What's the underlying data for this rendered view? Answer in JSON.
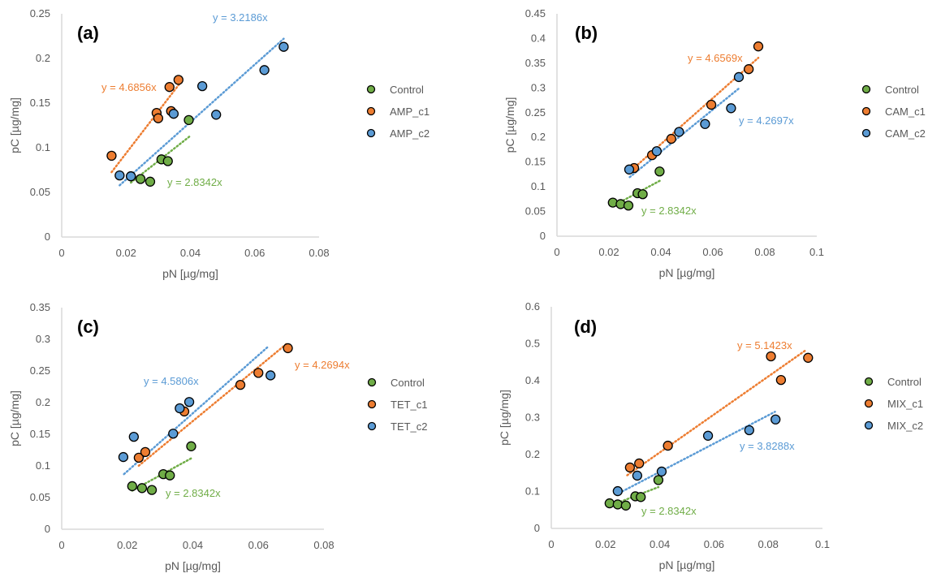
{
  "chart_data": [
    {
      "type": "scatter",
      "panel": "(a)",
      "xlabel": "pN [µg/mg]",
      "ylabel": "pC [µg/mg]",
      "xlim": [
        0,
        0.08
      ],
      "ylim": [
        0,
        0.25
      ],
      "xticks": [
        "0",
        "0.02",
        "0.04",
        "0.06",
        "0.08"
      ],
      "yticks": [
        "0",
        "0.05",
        "0.1",
        "0.15",
        "0.2",
        "0.25"
      ],
      "grid": false,
      "legend_position": "right",
      "series": [
        {
          "name": "Control",
          "color": "#70ad47",
          "trend_slope": 2.8342,
          "trend_label": "y = 2.8342x",
          "points": [
            [
              0.0215,
              0.068
            ],
            [
              0.0245,
              0.065
            ],
            [
              0.0275,
              0.062
            ],
            [
              0.031,
              0.087
            ],
            [
              0.033,
              0.085
            ],
            [
              0.0395,
              0.131
            ]
          ]
        },
        {
          "name": "AMP_c1",
          "color": "#ed7d31",
          "trend_slope": 4.6856,
          "trend_label": "y = 4.6856x",
          "points": [
            [
              0.0155,
              0.091
            ],
            [
              0.0295,
              0.139
            ],
            [
              0.03,
              0.133
            ],
            [
              0.034,
              0.141
            ],
            [
              0.0335,
              0.168
            ],
            [
              0.0363,
              0.176
            ]
          ]
        },
        {
          "name": "AMP_c2",
          "color": "#5b9bd5",
          "trend_slope": 3.2186,
          "trend_label": "y = 3.2186x",
          "points": [
            [
              0.018,
              0.069
            ],
            [
              0.0215,
              0.068
            ],
            [
              0.0348,
              0.138
            ],
            [
              0.0437,
              0.169
            ],
            [
              0.048,
              0.137
            ],
            [
              0.063,
              0.187
            ],
            [
              0.069,
              0.213
            ]
          ]
        }
      ]
    },
    {
      "type": "scatter",
      "panel": "(b)",
      "xlabel": "pN [µg/mg]",
      "ylabel": "pC [µg/mg]",
      "xlim": [
        0,
        0.1
      ],
      "ylim": [
        0,
        0.45
      ],
      "xticks": [
        "0",
        "0.02",
        "0.04",
        "0.06",
        "0.08",
        "0.1"
      ],
      "yticks": [
        "0",
        "0.05",
        "0.1",
        "0.15",
        "0.2",
        "0.25",
        "0.3",
        "0.35",
        "0.4",
        "0.45"
      ],
      "grid": false,
      "legend_position": "right",
      "series": [
        {
          "name": "Control",
          "color": "#70ad47",
          "trend_slope": 2.8342,
          "trend_label": "y = 2.8342x",
          "points": [
            [
              0.0215,
              0.068
            ],
            [
              0.0245,
              0.065
            ],
            [
              0.0275,
              0.062
            ],
            [
              0.031,
              0.087
            ],
            [
              0.033,
              0.085
            ],
            [
              0.0395,
              0.131
            ]
          ]
        },
        {
          "name": "CAM_c1",
          "color": "#ed7d31",
          "trend_slope": 4.6569,
          "trend_label": "y = 4.6569x",
          "points": [
            [
              0.0297,
              0.138
            ],
            [
              0.0366,
              0.164
            ],
            [
              0.044,
              0.197
            ],
            [
              0.0594,
              0.266
            ],
            [
              0.0738,
              0.338
            ],
            [
              0.0775,
              0.384
            ]
          ]
        },
        {
          "name": "CAM_c2",
          "color": "#5b9bd5",
          "trend_slope": 4.2697,
          "trend_label": "y = 4.2697x",
          "points": [
            [
              0.0278,
              0.135
            ],
            [
              0.0384,
              0.172
            ],
            [
              0.047,
              0.211
            ],
            [
              0.057,
              0.227
            ],
            [
              0.067,
              0.259
            ],
            [
              0.07,
              0.322
            ]
          ]
        }
      ]
    },
    {
      "type": "scatter",
      "panel": "(c)",
      "xlabel": "pN [µg/mg]",
      "ylabel": "pC [µg/mg]",
      "xlim": [
        0,
        0.08
      ],
      "ylim": [
        0,
        0.35
      ],
      "xticks": [
        "0",
        "0.02",
        "0.04",
        "0.06",
        "0.08"
      ],
      "yticks": [
        "0",
        "0.05",
        "0.1",
        "0.15",
        "0.2",
        "0.25",
        "0.3",
        "0.35"
      ],
      "grid": false,
      "legend_position": "right",
      "series": [
        {
          "name": "Control",
          "color": "#70ad47",
          "trend_slope": 2.8342,
          "trend_label": "y = 2.8342x",
          "points": [
            [
              0.0215,
              0.068
            ],
            [
              0.0245,
              0.065
            ],
            [
              0.0275,
              0.062
            ],
            [
              0.031,
              0.087
            ],
            [
              0.033,
              0.085
            ],
            [
              0.0395,
              0.131
            ]
          ]
        },
        {
          "name": "TET_c1",
          "color": "#ed7d31",
          "trend_slope": 4.2694,
          "trend_label": "y = 4.2694x",
          "points": [
            [
              0.0235,
              0.113
            ],
            [
              0.0255,
              0.122
            ],
            [
              0.0374,
              0.186
            ],
            [
              0.0545,
              0.228
            ],
            [
              0.06,
              0.247
            ],
            [
              0.069,
              0.286
            ]
          ]
        },
        {
          "name": "TET_c2",
          "color": "#5b9bd5",
          "trend_slope": 4.5806,
          "trend_label": "y = 4.5806x",
          "points": [
            [
              0.0188,
              0.114
            ],
            [
              0.022,
              0.146
            ],
            [
              0.034,
              0.151
            ],
            [
              0.036,
              0.191
            ],
            [
              0.0389,
              0.201
            ],
            [
              0.0637,
              0.243
            ]
          ]
        }
      ]
    },
    {
      "type": "scatter",
      "panel": "(d)",
      "xlabel": "pN [µg/mg]",
      "ylabel": "pC [µg/mg]",
      "xlim": [
        0,
        0.1
      ],
      "ylim": [
        0,
        0.6
      ],
      "xticks": [
        "0",
        "0.02",
        "0.04",
        "0.06",
        "0.08",
        "0.1"
      ],
      "yticks": [
        "0",
        "0.1",
        "0.2",
        "0.3",
        "0.4",
        "0.5",
        "0.6"
      ],
      "grid": false,
      "legend_position": "right",
      "series": [
        {
          "name": "Control",
          "color": "#70ad47",
          "trend_slope": 2.8342,
          "trend_label": "y = 2.8342x",
          "points": [
            [
              0.0215,
              0.068
            ],
            [
              0.0245,
              0.065
            ],
            [
              0.0275,
              0.062
            ],
            [
              0.031,
              0.087
            ],
            [
              0.033,
              0.085
            ],
            [
              0.0395,
              0.131
            ]
          ]
        },
        {
          "name": "MIX_c1",
          "color": "#ed7d31",
          "trend_slope": 5.1423,
          "trend_label": "y = 5.1423x",
          "points": [
            [
              0.029,
              0.165
            ],
            [
              0.0324,
              0.176
            ],
            [
              0.043,
              0.224
            ],
            [
              0.081,
              0.466
            ],
            [
              0.0847,
              0.402
            ],
            [
              0.0947,
              0.462
            ]
          ]
        },
        {
          "name": "MIX_c2",
          "color": "#5b9bd5",
          "trend_slope": 3.8288,
          "trend_label": "y = 3.8288x",
          "points": [
            [
              0.0245,
              0.101
            ],
            [
              0.0317,
              0.143
            ],
            [
              0.0407,
              0.154
            ],
            [
              0.0578,
              0.251
            ],
            [
              0.073,
              0.266
            ],
            [
              0.0827,
              0.295
            ]
          ]
        }
      ]
    }
  ]
}
